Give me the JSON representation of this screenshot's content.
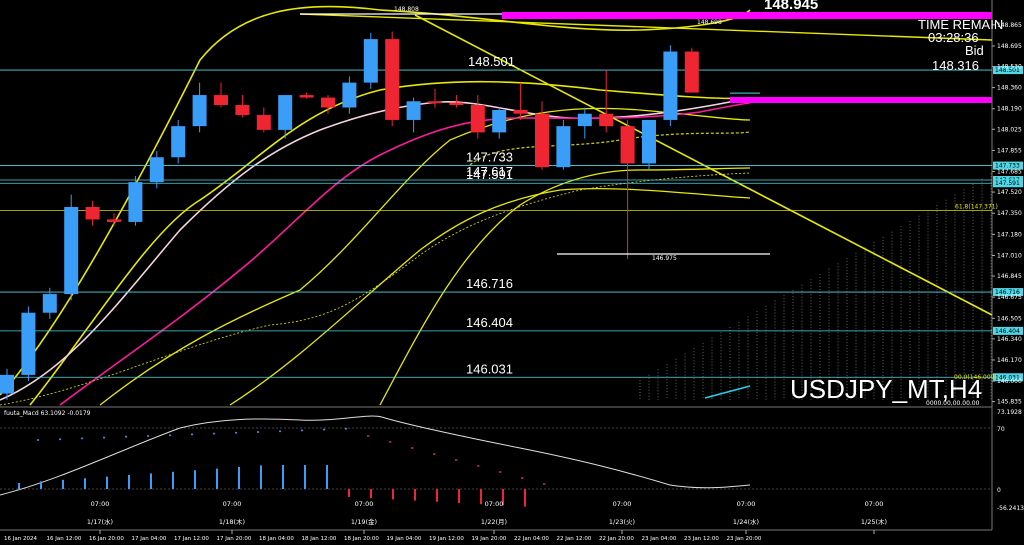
{
  "window": {
    "symbol_label": "USDJPY_MT,H4"
  },
  "info": {
    "time_remain_label": "TIME REMAIN",
    "time_remain_value": "03:28:36",
    "bid_label": "Bid",
    "bid_value": "148.316",
    "top_price": "148.945"
  },
  "markers": {
    "high_label": "148.808",
    "low_label": "146.975",
    "last_high_label": "148.698"
  },
  "levels": [
    {
      "value": 148.501,
      "label": "148.501",
      "tag": "148.501"
    },
    {
      "value": 147.733,
      "label": "147.733",
      "tag": "147.733"
    },
    {
      "value": 147.617,
      "label": "147.617",
      "tag": "147.617"
    },
    {
      "value": 147.591,
      "label": "147.591",
      "tag": "147.591"
    },
    {
      "value": 146.716,
      "label": "146.716",
      "tag": "146.716"
    },
    {
      "value": 146.404,
      "label": "146.404",
      "tag": "146.404"
    },
    {
      "value": 146.031,
      "label": "146.031",
      "tag": "146.031"
    }
  ],
  "fib": {
    "label_618": "61.8(147.371)",
    "label_00": "00.0(146.009)",
    "value_618": 147.371
  },
  "macd_panel": {
    "title": "fuuta_Macd 63.1092 -0.0179",
    "scale": {
      "top": "73.1928",
      "mid": "70",
      "zero": "0",
      "bottom": "-56.2413"
    },
    "bottom_label": "0000.00,00.00.00"
  },
  "chart_data": {
    "type": "candlestick",
    "title": "USDJPY_MT,H4",
    "ylim": [
      145.8,
      149.0
    ],
    "price_ticks": [
      "148.865",
      "148.695",
      "148.530",
      "148.360",
      "148.190",
      "148.025",
      "147.855",
      "147.685",
      "147.520",
      "147.350",
      "147.180",
      "147.010",
      "146.845",
      "146.675",
      "146.505",
      "146.340",
      "146.170",
      "146.000",
      "145.835"
    ],
    "time_labels": [
      "16 Jan 2024",
      "16 Jan 12:00",
      "16 Jan 20:00",
      "17 Jan 04:00",
      "17 Jan 12:00",
      "17 Jan 20:00",
      "18 Jan 04:00",
      "18 Jan 12:00",
      "18 Jan 20:00",
      "19 Jan 04:00",
      "19 Jan 12:00",
      "19 Jan 20:00",
      "22 Jan 04:00",
      "22 Jan 12:00",
      "22 Jan 20:00",
      "23 Jan 04:00",
      "23 Jan 12:00",
      "23 Jan 20:00"
    ],
    "day_labels": [
      "07:00\n1/17(水)",
      "07:00\n1/18(木)",
      "07:00\n1/19(金)",
      "07:00\n1/22(月)",
      "07:00\n1/23(火)",
      "07:00\n1/24(水)",
      "07:00\n1/25(木)"
    ],
    "candles": [
      {
        "o": 145.9,
        "h": 146.1,
        "l": 145.85,
        "c": 146.05
      },
      {
        "o": 146.05,
        "h": 146.6,
        "l": 146.0,
        "c": 146.55
      },
      {
        "o": 146.55,
        "h": 146.75,
        "l": 146.5,
        "c": 146.7
      },
      {
        "o": 146.7,
        "h": 147.5,
        "l": 146.65,
        "c": 147.4
      },
      {
        "o": 147.4,
        "h": 147.45,
        "l": 147.25,
        "c": 147.3
      },
      {
        "o": 147.3,
        "h": 147.35,
        "l": 147.25,
        "c": 147.28
      },
      {
        "o": 147.28,
        "h": 147.65,
        "l": 147.25,
        "c": 147.6
      },
      {
        "o": 147.6,
        "h": 147.85,
        "l": 147.55,
        "c": 147.8
      },
      {
        "o": 147.8,
        "h": 148.1,
        "l": 147.75,
        "c": 148.05
      },
      {
        "o": 148.05,
        "h": 148.4,
        "l": 148.0,
        "c": 148.3
      },
      {
        "o": 148.3,
        "h": 148.4,
        "l": 148.2,
        "c": 148.22
      },
      {
        "o": 148.22,
        "h": 148.3,
        "l": 148.12,
        "c": 148.14
      },
      {
        "o": 148.14,
        "h": 148.2,
        "l": 148.0,
        "c": 148.02
      },
      {
        "o": 148.02,
        "h": 148.3,
        "l": 147.95,
        "c": 148.3
      },
      {
        "o": 148.3,
        "h": 148.32,
        "l": 148.27,
        "c": 148.28
      },
      {
        "o": 148.28,
        "h": 148.3,
        "l": 148.15,
        "c": 148.2
      },
      {
        "o": 148.2,
        "h": 148.45,
        "l": 148.15,
        "c": 148.4
      },
      {
        "o": 148.4,
        "h": 148.8,
        "l": 148.35,
        "c": 148.75
      },
      {
        "o": 148.75,
        "h": 148.81,
        "l": 148.05,
        "c": 148.1
      },
      {
        "o": 148.1,
        "h": 148.28,
        "l": 148.0,
        "c": 148.25
      },
      {
        "o": 148.25,
        "h": 148.35,
        "l": 148.2,
        "c": 148.24
      },
      {
        "o": 148.24,
        "h": 148.3,
        "l": 148.2,
        "c": 148.22
      },
      {
        "o": 148.22,
        "h": 148.3,
        "l": 147.95,
        "c": 148.0
      },
      {
        "o": 148.0,
        "h": 148.2,
        "l": 147.95,
        "c": 148.18
      },
      {
        "o": 148.18,
        "h": 148.4,
        "l": 148.1,
        "c": 148.15
      },
      {
        "o": 148.15,
        "h": 148.25,
        "l": 147.7,
        "c": 147.72
      },
      {
        "o": 147.72,
        "h": 148.1,
        "l": 147.7,
        "c": 148.05
      },
      {
        "o": 148.05,
        "h": 148.2,
        "l": 147.95,
        "c": 148.15
      },
      {
        "o": 148.15,
        "h": 148.5,
        "l": 148.0,
        "c": 148.05
      },
      {
        "o": 148.05,
        "h": 148.1,
        "l": 146.98,
        "c": 147.75
      },
      {
        "o": 147.75,
        "h": 148.1,
        "l": 147.7,
        "c": 148.1
      },
      {
        "o": 148.1,
        "h": 148.7,
        "l": 148.05,
        "c": 148.65
      },
      {
        "o": 148.65,
        "h": 148.68,
        "l": 148.32,
        "c": 148.32
      }
    ]
  }
}
